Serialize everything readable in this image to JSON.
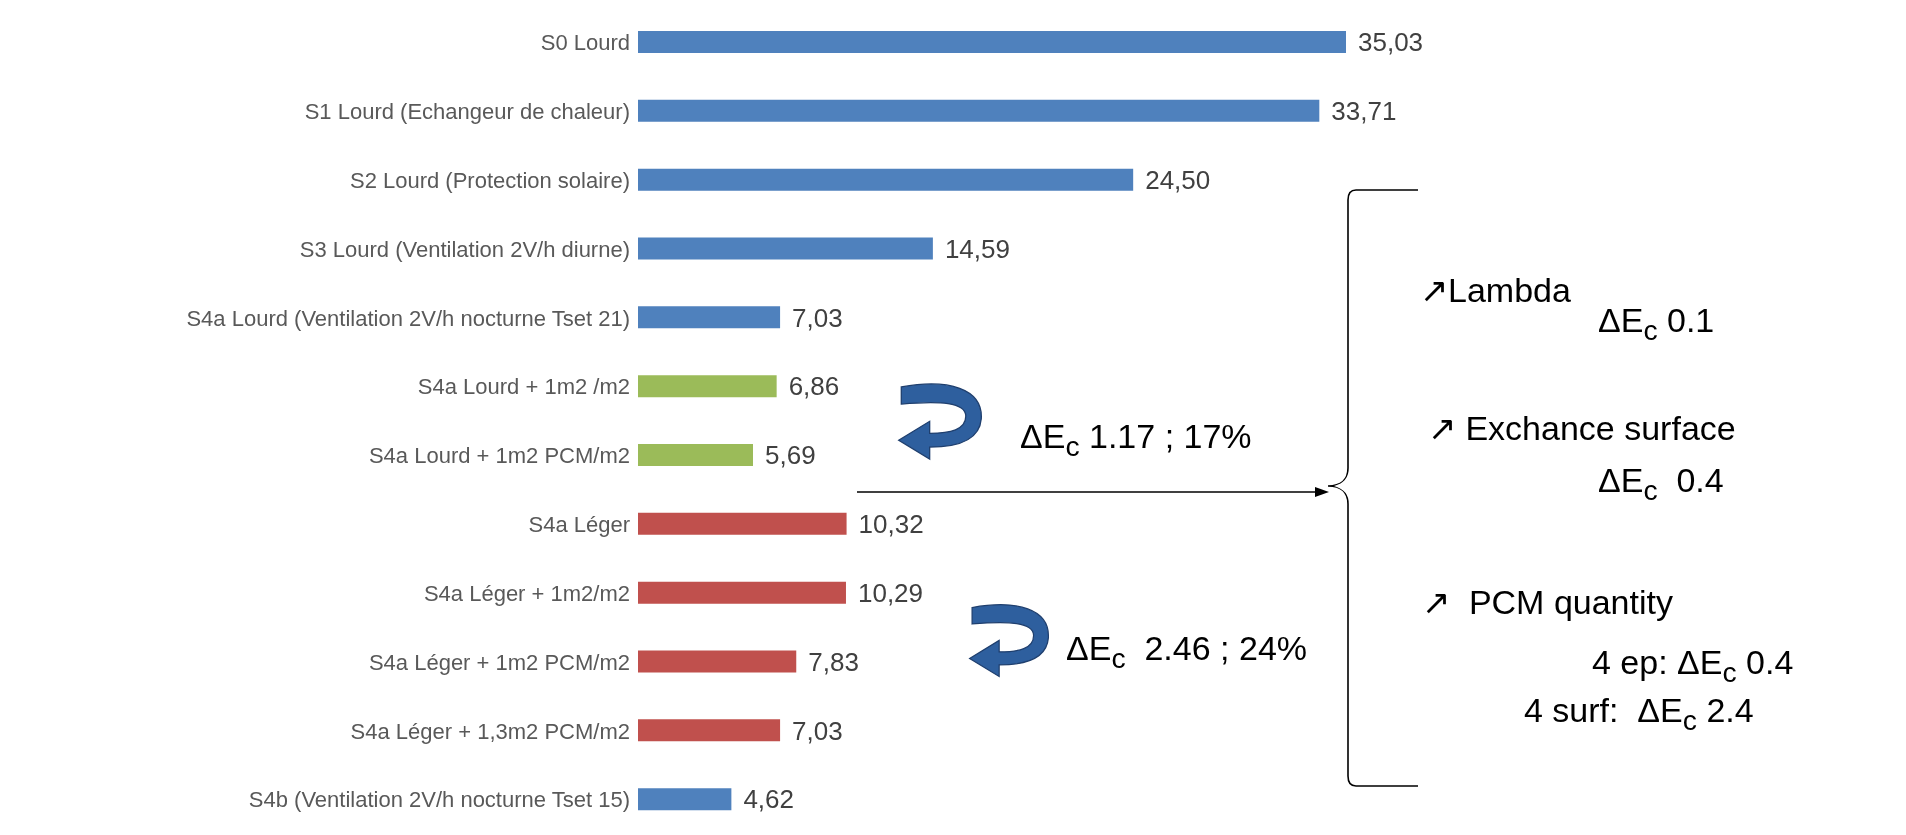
{
  "chart_data": {
    "type": "bar",
    "orientation": "horizontal",
    "categories": [
      "S0 Lourd",
      "S1 Lourd (Echangeur de chaleur)",
      "S2 Lourd (Protection solaire)",
      "S3 Lourd (Ventilation 2V/h diurne)",
      "S4a Lourd (Ventilation 2V/h nocturne Tset 21)",
      "S4a Lourd +  1m2 /m2",
      "S4a Lourd +  1m2 PCM/m2",
      "S4a Léger",
      "S4a Léger + 1m2/m2",
      "S4a Léger + 1m2 PCM/m2",
      "S4a Léger + 1,3m2 PCM/m2",
      "S4b (Ventilation 2V/h nocturne Tset 15)"
    ],
    "values": [
      35.03,
      33.71,
      24.5,
      14.59,
      7.03,
      6.86,
      5.69,
      10.32,
      10.29,
      7.83,
      7.03,
      4.62
    ],
    "value_labels": [
      "35,03",
      "33,71",
      "24,50",
      "14,59",
      "7,03",
      "6,86",
      "5,69",
      "10,32",
      "10,29",
      "7,83",
      "7,03",
      "4,62"
    ],
    "colors": [
      "#4f81bd",
      "#4f81bd",
      "#4f81bd",
      "#4f81bd",
      "#4f81bd",
      "#9bbb59",
      "#9bbb59",
      "#c0504d",
      "#c0504d",
      "#c0504d",
      "#c0504d",
      "#4f81bd"
    ],
    "annotations": [
      "ΔE$_{c}$ 1.17 ; 17%",
      "ΔE$_{c}$  2.46 ; 24%",
      "↗Lambda",
      "ΔE$_{c}$ 0.1",
      "↗ Exchance surface",
      "ΔE$_{c}$  0.4",
      "↗  PCM quantity",
      "4 ep: ΔE$_{c}$ 0.4",
      "4 surf:  ΔE$_{c}$ 2.4"
    ],
    "grid": false,
    "legend": false
  }
}
